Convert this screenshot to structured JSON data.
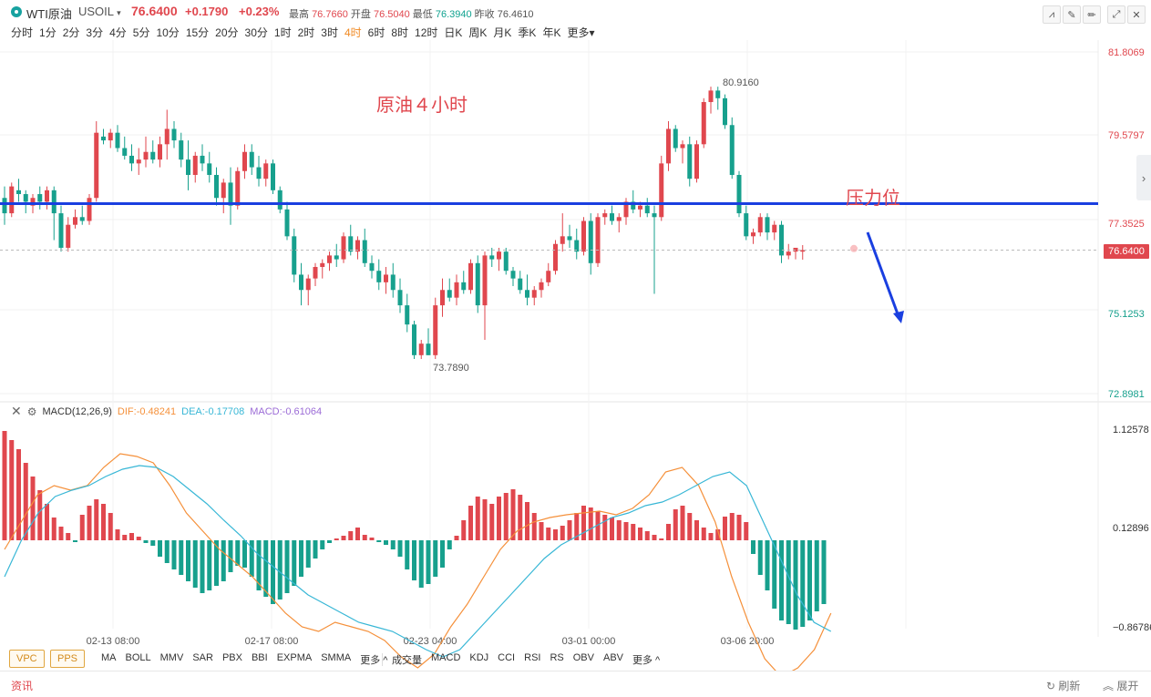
{
  "header": {
    "symbol_name": "WTI原油",
    "symbol_code": "USOIL",
    "last_price": "76.6400",
    "change": "+0.1790",
    "change_pct": "+0.23%",
    "high_label": "最高",
    "high": "76.7660",
    "open_label": "开盘",
    "open": "76.5040",
    "low_label": "最低",
    "low": "76.3940",
    "prev_close_label": "昨收",
    "prev_close": "76.4610"
  },
  "periods": [
    "分时",
    "1分",
    "2分",
    "3分",
    "4分",
    "5分",
    "10分",
    "15分",
    "20分",
    "30分",
    "1时",
    "2时",
    "3时",
    "4时",
    "6时",
    "8时",
    "12时",
    "日K",
    "周K",
    "月K",
    "季K",
    "年K",
    "更多"
  ],
  "active_period": "4时",
  "annotations": {
    "title": "原油４小时",
    "resistance_label": "压力位",
    "high_marker": "80.9160",
    "low_marker": "73.7890"
  },
  "price_axis": [
    "81.8069",
    "79.5797",
    "77.3525",
    "75.1253",
    "72.8981"
  ],
  "current_price_tag": "76.6400",
  "macd_legend": {
    "name": "MACD(12,26,9)",
    "dif": "DIF:-0.48241",
    "dea": "DEA:-0.17708",
    "macd": "MACD:-0.61064"
  },
  "macd_axis": [
    "1.12578",
    "0.12896",
    "−0.86786"
  ],
  "time_axis": [
    "02-13 08:00",
    "02-17 08:00",
    "02-23 04:00",
    "03-01 00:00",
    "03-06 20:00"
  ],
  "indicator_tags": [
    "VPC",
    "PPS"
  ],
  "main_indicators": [
    "MA",
    "BOLL",
    "MMV",
    "SAR",
    "PBX",
    "BBI",
    "EXPMA",
    "SMMA",
    "更多 ^"
  ],
  "sub_indicators": [
    "成交量",
    "MACD",
    "KDJ",
    "CCI",
    "RSI",
    "RS",
    "OBV",
    "ABV",
    "更多 ^"
  ],
  "footer": {
    "news": "资讯",
    "refresh": "刷新",
    "expand": "展开"
  },
  "colors": {
    "up": "#e0474e",
    "down": "#17a08d",
    "resistance": "#1a3fe0",
    "dif": "#f5903a",
    "dea": "#38b7d6"
  }
}
